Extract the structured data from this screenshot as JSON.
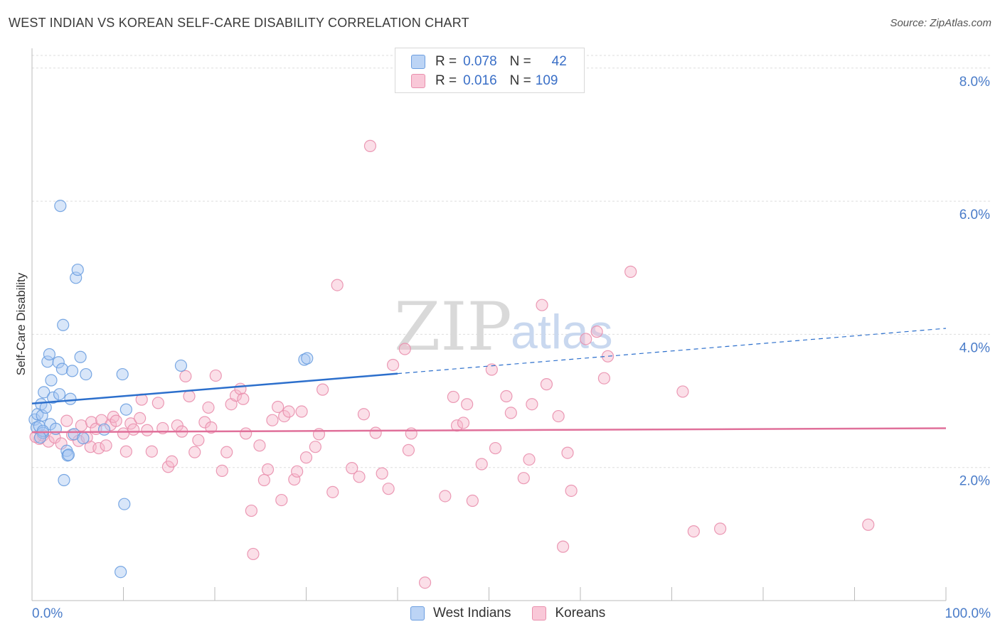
{
  "header": {
    "title": "WEST INDIAN VS KOREAN SELF-CARE DISABILITY CORRELATION CHART",
    "source": "Source: ZipAtlas.com"
  },
  "watermark": {
    "zip": "ZIP",
    "atlas": "atlas"
  },
  "legend": {
    "rows": [
      {
        "r_label": "R =",
        "r_value": "0.078",
        "n_label": "N =",
        "n_value": "42"
      },
      {
        "r_label": "R =",
        "r_value": "0.016",
        "n_label": "N =",
        "n_value": "109"
      }
    ]
  },
  "bottom_legend": {
    "series1": "West Indians",
    "series2": "Koreans"
  },
  "colors": {
    "west_indian_fill": "#a9c8f2",
    "west_indian_stroke": "#6c9ee0",
    "west_indian_line": "#2c6fcc",
    "korean_fill": "#f7b8cc",
    "korean_stroke": "#e98fad",
    "korean_line": "#e0709a",
    "grid": "#dddddd",
    "tick_text": "#4a7cc9"
  },
  "chart_data": {
    "type": "scatter",
    "title": "WEST INDIAN VS KOREAN SELF-CARE DISABILITY CORRELATION CHART",
    "xlabel": "",
    "ylabel": "Self-Care Disability",
    "xlim": [
      0,
      100
    ],
    "ylim": [
      0,
      8
    ],
    "x_tick_labels": [
      "0.0%",
      "100.0%"
    ],
    "y_ticks": [
      2,
      4,
      6,
      8
    ],
    "y_tick_labels": [
      "2.0%",
      "4.0%",
      "6.0%",
      "8.0%"
    ],
    "grid": true,
    "legend_position": "top-center",
    "series": [
      {
        "name": "West Indians",
        "R": 0.078,
        "N": 42,
        "trend": {
          "x": [
            0,
            40,
            100
          ],
          "y": [
            2.96,
            3.41,
            4.09
          ],
          "solid_until": 40
        },
        "points": [
          [
            0.3,
            2.72
          ],
          [
            0.5,
            2.6
          ],
          [
            0.6,
            2.8
          ],
          [
            0.8,
            2.62
          ],
          [
            1.0,
            2.95
          ],
          [
            1.1,
            2.78
          ],
          [
            1.2,
            2.52
          ],
          [
            1.3,
            3.13
          ],
          [
            1.5,
            2.9
          ],
          [
            1.7,
            3.59
          ],
          [
            1.9,
            3.7
          ],
          [
            2.0,
            2.65
          ],
          [
            2.1,
            3.31
          ],
          [
            2.3,
            3.05
          ],
          [
            2.6,
            2.58
          ],
          [
            2.9,
            3.58
          ],
          [
            3.0,
            3.1
          ],
          [
            3.3,
            3.48
          ],
          [
            3.4,
            4.14
          ],
          [
            3.5,
            1.81
          ],
          [
            3.1,
            5.93
          ],
          [
            3.8,
            2.25
          ],
          [
            3.9,
            2.18
          ],
          [
            4.0,
            2.19
          ],
          [
            4.2,
            3.03
          ],
          [
            4.4,
            3.45
          ],
          [
            4.6,
            2.5
          ],
          [
            4.8,
            4.85
          ],
          [
            5.0,
            4.97
          ],
          [
            5.3,
            3.66
          ],
          [
            5.6,
            2.44
          ],
          [
            5.9,
            3.4
          ],
          [
            7.9,
            2.57
          ],
          [
            9.7,
            0.43
          ],
          [
            9.9,
            3.4
          ],
          [
            10.1,
            1.45
          ],
          [
            10.3,
            2.87
          ],
          [
            16.3,
            3.53
          ],
          [
            29.8,
            3.62
          ],
          [
            30.1,
            3.64
          ],
          [
            1.2,
            2.55
          ],
          [
            0.9,
            2.45
          ]
        ]
      },
      {
        "name": "Koreans",
        "R": 0.016,
        "N": 109,
        "trend": {
          "x": [
            0,
            100
          ],
          "y": [
            2.53,
            2.59
          ]
        },
        "points": [
          [
            0.8,
            2.43
          ],
          [
            1.2,
            2.48
          ],
          [
            1.8,
            2.39
          ],
          [
            2.5,
            2.45
          ],
          [
            3.2,
            2.36
          ],
          [
            3.8,
            2.7
          ],
          [
            4.4,
            2.49
          ],
          [
            5.1,
            2.4
          ],
          [
            5.4,
            2.63
          ],
          [
            6.0,
            2.45
          ],
          [
            6.4,
            2.31
          ],
          [
            6.5,
            2.68
          ],
          [
            7.0,
            2.58
          ],
          [
            7.3,
            2.29
          ],
          [
            7.6,
            2.71
          ],
          [
            8.1,
            2.33
          ],
          [
            8.6,
            2.64
          ],
          [
            8.9,
            2.76
          ],
          [
            9.2,
            2.7
          ],
          [
            10.0,
            2.51
          ],
          [
            10.3,
            2.24
          ],
          [
            10.8,
            2.66
          ],
          [
            11.1,
            2.57
          ],
          [
            11.8,
            2.74
          ],
          [
            12.0,
            3.02
          ],
          [
            12.6,
            2.56
          ],
          [
            13.1,
            2.24
          ],
          [
            13.8,
            2.97
          ],
          [
            14.3,
            2.59
          ],
          [
            14.9,
            2.01
          ],
          [
            15.3,
            2.09
          ],
          [
            15.9,
            2.63
          ],
          [
            16.4,
            2.54
          ],
          [
            16.8,
            3.37
          ],
          [
            17.2,
            3.07
          ],
          [
            17.8,
            2.23
          ],
          [
            18.2,
            2.41
          ],
          [
            18.9,
            2.68
          ],
          [
            19.3,
            2.9
          ],
          [
            19.6,
            2.6
          ],
          [
            20.1,
            3.38
          ],
          [
            20.8,
            1.95
          ],
          [
            21.3,
            2.23
          ],
          [
            21.8,
            2.95
          ],
          [
            22.3,
            3.08
          ],
          [
            22.8,
            3.18
          ],
          [
            23.1,
            3.03
          ],
          [
            23.4,
            2.51
          ],
          [
            24.0,
            1.35
          ],
          [
            24.2,
            0.7
          ],
          [
            24.9,
            2.33
          ],
          [
            25.4,
            1.81
          ],
          [
            25.8,
            1.97
          ],
          [
            26.3,
            2.71
          ],
          [
            26.9,
            2.91
          ],
          [
            27.3,
            1.51
          ],
          [
            27.6,
            2.77
          ],
          [
            28.1,
            2.84
          ],
          [
            28.7,
            1.82
          ],
          [
            29.0,
            1.94
          ],
          [
            29.5,
            2.84
          ],
          [
            30.0,
            2.15
          ],
          [
            31.0,
            2.31
          ],
          [
            31.4,
            2.5
          ],
          [
            31.8,
            3.17
          ],
          [
            32.9,
            1.63
          ],
          [
            33.4,
            4.74
          ],
          [
            35.0,
            1.99
          ],
          [
            35.8,
            1.86
          ],
          [
            36.3,
            2.8
          ],
          [
            37.0,
            6.83
          ],
          [
            37.6,
            2.52
          ],
          [
            38.3,
            1.91
          ],
          [
            39.0,
            1.68
          ],
          [
            39.5,
            3.54
          ],
          [
            40.8,
            3.78
          ],
          [
            41.2,
            2.26
          ],
          [
            41.5,
            2.51
          ],
          [
            43.0,
            0.27
          ],
          [
            45.2,
            1.57
          ],
          [
            46.1,
            3.06
          ],
          [
            46.5,
            2.63
          ],
          [
            47.2,
            2.67
          ],
          [
            47.6,
            2.95
          ],
          [
            48.2,
            1.5
          ],
          [
            49.2,
            2.05
          ],
          [
            50.3,
            3.47
          ],
          [
            50.7,
            2.29
          ],
          [
            51.9,
            3.07
          ],
          [
            52.4,
            2.82
          ],
          [
            53.8,
            1.84
          ],
          [
            54.4,
            2.12
          ],
          [
            54.7,
            2.95
          ],
          [
            55.8,
            4.44
          ],
          [
            56.3,
            3.25
          ],
          [
            57.6,
            2.77
          ],
          [
            58.1,
            0.81
          ],
          [
            58.6,
            2.22
          ],
          [
            59.0,
            1.65
          ],
          [
            60.6,
            3.93
          ],
          [
            61.8,
            4.04
          ],
          [
            62.6,
            3.34
          ],
          [
            63.0,
            3.67
          ],
          [
            65.5,
            4.94
          ],
          [
            71.2,
            3.14
          ],
          [
            72.4,
            1.04
          ],
          [
            75.3,
            1.08
          ],
          [
            91.5,
            1.14
          ],
          [
            0.4,
            2.46
          ]
        ]
      }
    ]
  }
}
